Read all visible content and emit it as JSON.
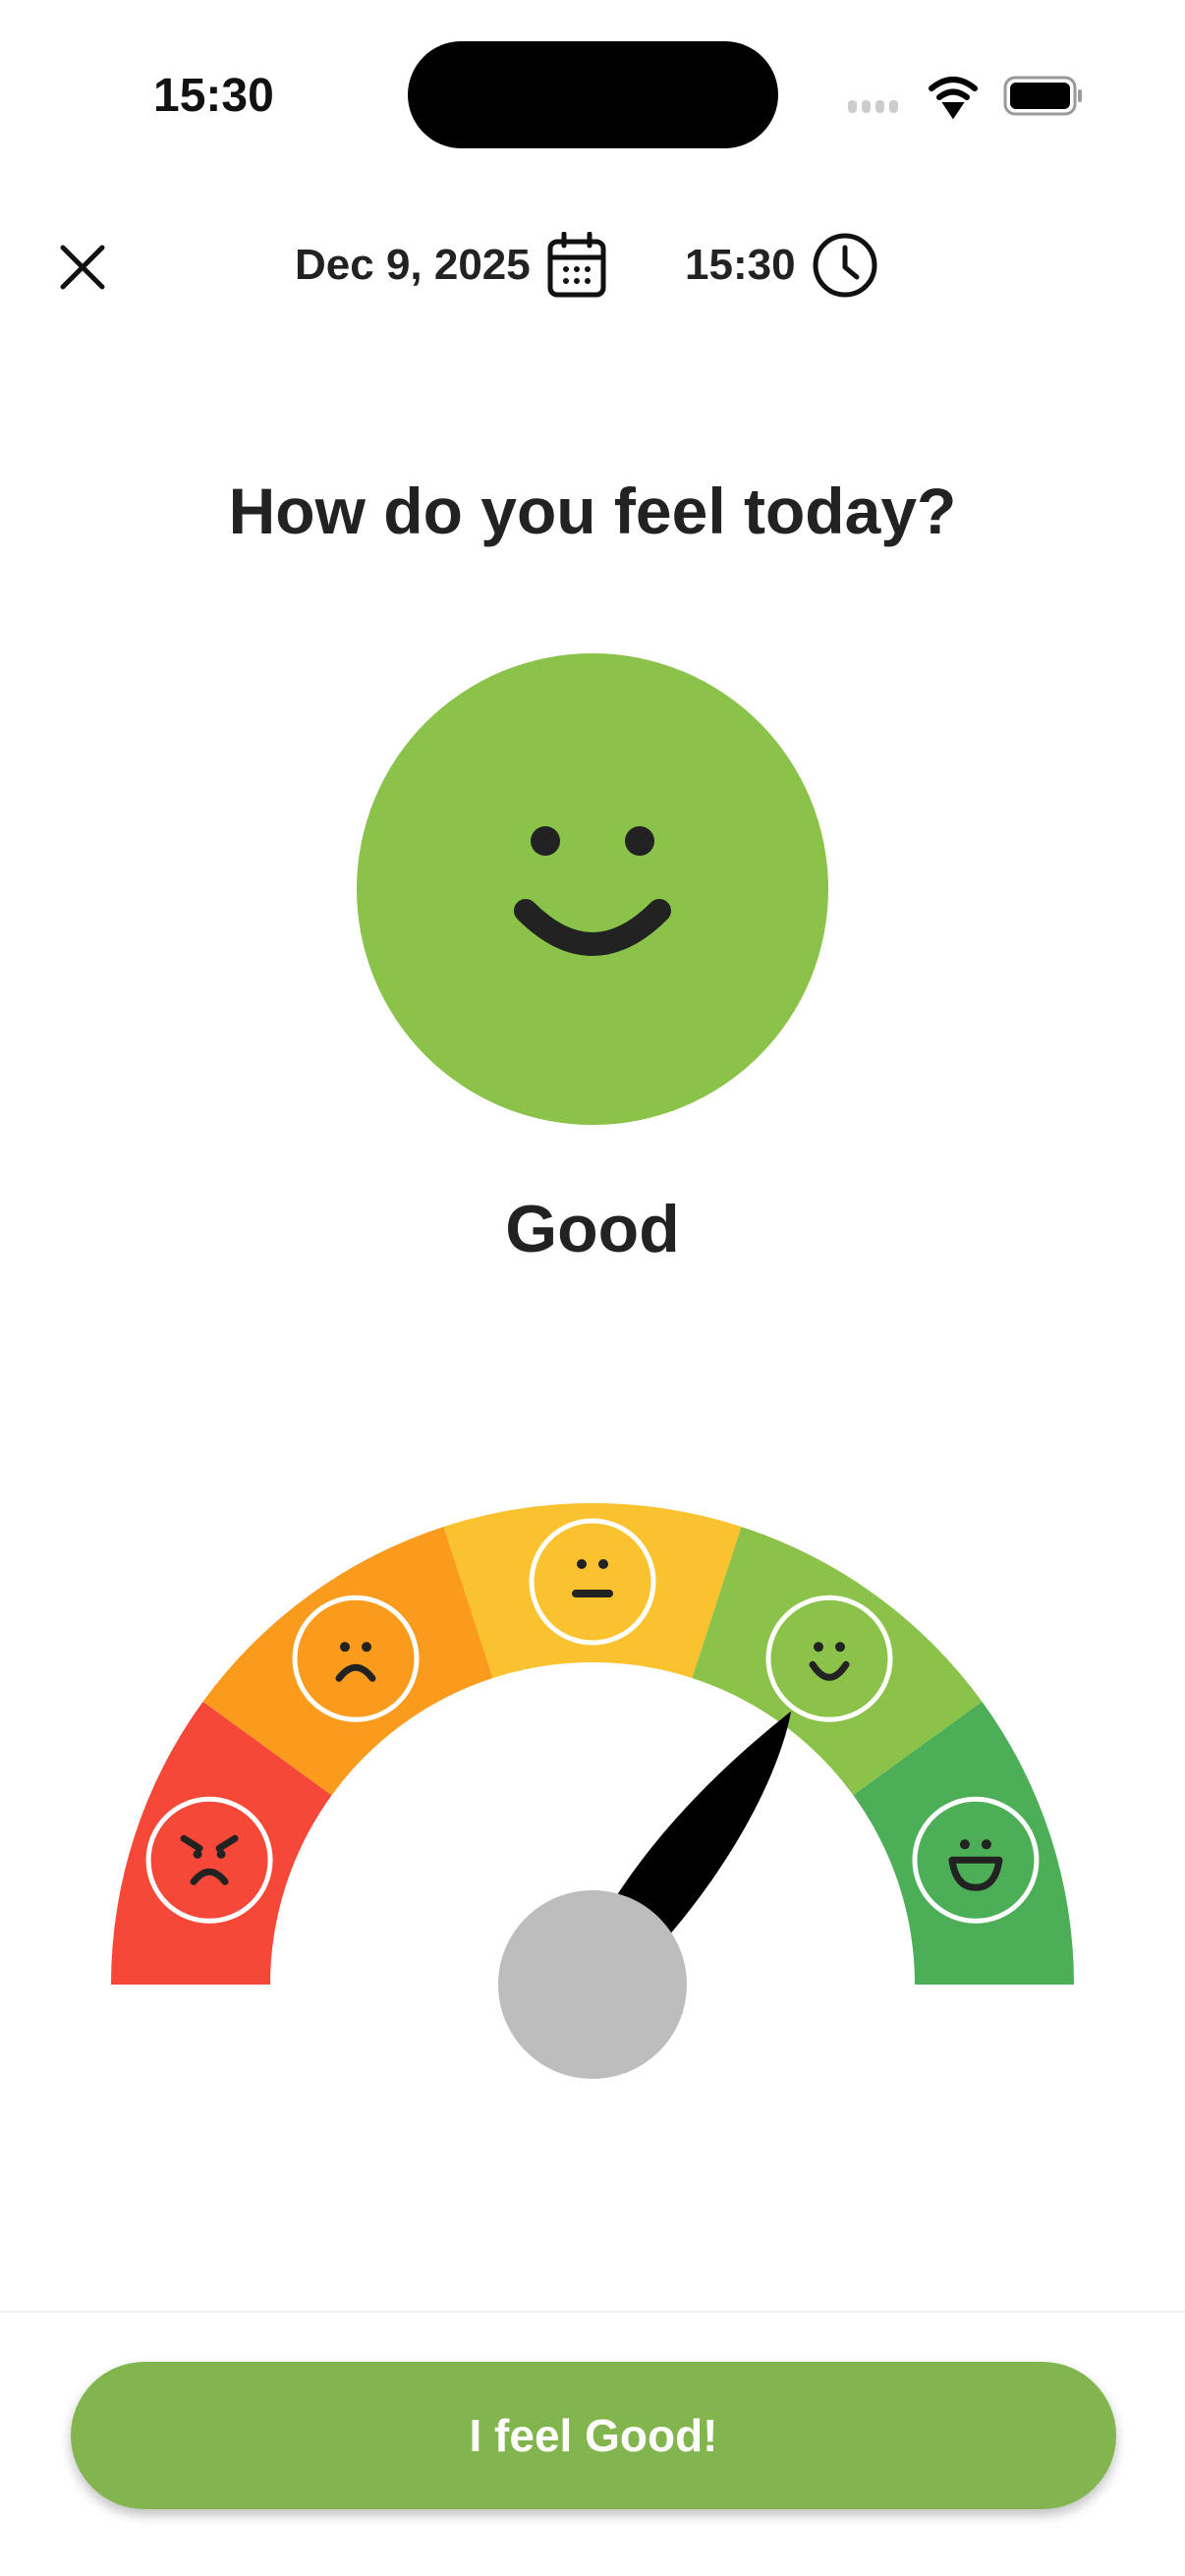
{
  "status_bar": {
    "time": "15:30"
  },
  "header": {
    "close_icon": "close-icon",
    "date": "Dec 9, 2025",
    "date_icon": "calendar-icon",
    "time": "15:30",
    "time_icon": "clock-icon"
  },
  "title": "How do you feel today?",
  "selected_mood": {
    "label": "Good",
    "level": 4,
    "max_level": 5,
    "color": "#8BC34A"
  },
  "gauge": {
    "segments": [
      {
        "mood": "angry",
        "color": "#F64838"
      },
      {
        "mood": "sad",
        "color": "#FA9B1E"
      },
      {
        "mood": "neutral",
        "color": "#FBC22F"
      },
      {
        "mood": "happy",
        "color": "#8BC34A"
      },
      {
        "mood": "very-happy",
        "color": "#4CAF57"
      }
    ],
    "hub_color": "#BDBDBD"
  },
  "cta": {
    "label": "I feel Good!",
    "color": "#83B54F"
  }
}
